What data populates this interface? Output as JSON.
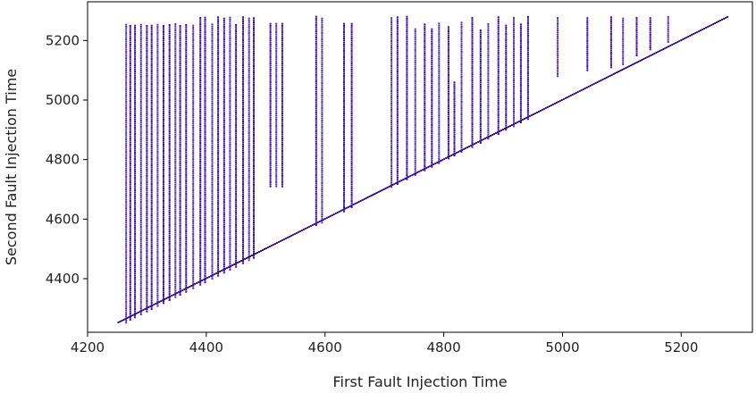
{
  "chart_data": {
    "type": "scatter",
    "title": "",
    "xlabel": "First Fault Injection Time",
    "ylabel": "Second Fault Injection Time",
    "xlim": [
      4200,
      5320
    ],
    "ylim": [
      4220,
      5330
    ],
    "xticks": [
      4200,
      4400,
      4600,
      4800,
      5000,
      5200
    ],
    "yticks": [
      4400,
      4600,
      4800,
      5000,
      5200
    ],
    "grid": false,
    "marker_color": "#3a0ca3",
    "description_of_pattern": "",
    "diagonal": {
      "x": [
        4252,
        5278
      ],
      "y": [
        4252,
        5278
      ]
    },
    "columns": [
      {
        "x": 4265,
        "y": [
          4252,
          5255
        ]
      },
      {
        "x": 4272,
        "y": [
          4262,
          5255
        ]
      },
      {
        "x": 4280,
        "y": [
          4270,
          5255
        ]
      },
      {
        "x": 4290,
        "y": [
          4280,
          5255
        ]
      },
      {
        "x": 4300,
        "y": [
          4290,
          5255
        ]
      },
      {
        "x": 4308,
        "y": [
          4298,
          5255
        ]
      },
      {
        "x": 4318,
        "y": [
          4308,
          5255
        ]
      },
      {
        "x": 4328,
        "y": [
          4318,
          5255
        ]
      },
      {
        "x": 4338,
        "y": [
          4328,
          5255
        ]
      },
      {
        "x": 4348,
        "y": [
          4338,
          5255
        ]
      },
      {
        "x": 4356,
        "y": [
          4346,
          5255
        ]
      },
      {
        "x": 4366,
        "y": [
          4356,
          5255
        ]
      },
      {
        "x": 4378,
        "y": [
          4368,
          5255
        ]
      },
      {
        "x": 4390,
        "y": [
          4380,
          5280
        ]
      },
      {
        "x": 4398,
        "y": [
          4388,
          5280
        ]
      },
      {
        "x": 4410,
        "y": [
          4400,
          5255
        ]
      },
      {
        "x": 4420,
        "y": [
          4410,
          5280
        ]
      },
      {
        "x": 4430,
        "y": [
          4420,
          5280
        ]
      },
      {
        "x": 4440,
        "y": [
          4430,
          5280
        ]
      },
      {
        "x": 4450,
        "y": [
          4440,
          5255
        ]
      },
      {
        "x": 4462,
        "y": [
          4452,
          5280
        ]
      },
      {
        "x": 4472,
        "y": [
          4462,
          5280
        ]
      },
      {
        "x": 4480,
        "y": [
          4470,
          5280
        ]
      },
      {
        "x": 4508,
        "y": [
          4710,
          5260
        ]
      },
      {
        "x": 4518,
        "y": [
          4710,
          5260
        ]
      },
      {
        "x": 4528,
        "y": [
          4710,
          5260
        ]
      },
      {
        "x": 4585,
        "y": [
          4580,
          5280
        ]
      },
      {
        "x": 4595,
        "y": [
          4588,
          5280
        ]
      },
      {
        "x": 4632,
        "y": [
          4626,
          5260
        ]
      },
      {
        "x": 4645,
        "y": [
          4640,
          5260
        ]
      },
      {
        "x": 4712,
        "y": [
          4708,
          5280
        ]
      },
      {
        "x": 4722,
        "y": [
          4718,
          5280
        ]
      },
      {
        "x": 4738,
        "y": [
          4734,
          5280
        ]
      },
      {
        "x": 4752,
        "y": [
          4748,
          5240
        ]
      },
      {
        "x": 4768,
        "y": [
          4764,
          5260
        ]
      },
      {
        "x": 4780,
        "y": [
          4776,
          5240
        ]
      },
      {
        "x": 4792,
        "y": [
          4788,
          5260
        ]
      },
      {
        "x": 4808,
        "y": [
          4804,
          5250
        ]
      },
      {
        "x": 4818,
        "y": [
          4814,
          5060
        ]
      },
      {
        "x": 4830,
        "y": [
          4826,
          5260
        ]
      },
      {
        "x": 4848,
        "y": [
          4842,
          5280
        ]
      },
      {
        "x": 4862,
        "y": [
          4856,
          5240
        ]
      },
      {
        "x": 4875,
        "y": [
          4870,
          5260
        ]
      },
      {
        "x": 4892,
        "y": [
          4886,
          5280
        ]
      },
      {
        "x": 4905,
        "y": [
          4900,
          5250
        ]
      },
      {
        "x": 4918,
        "y": [
          4912,
          5280
        ]
      },
      {
        "x": 4930,
        "y": [
          4925,
          5260
        ]
      },
      {
        "x": 4942,
        "y": [
          4936,
          5280
        ]
      },
      {
        "x": 4992,
        "y": [
          5080,
          5280
        ]
      },
      {
        "x": 5042,
        "y": [
          5100,
          5280
        ]
      },
      {
        "x": 5082,
        "y": [
          5110,
          5280
        ]
      },
      {
        "x": 5102,
        "y": [
          5120,
          5280
        ]
      },
      {
        "x": 5125,
        "y": [
          5150,
          5280
        ]
      },
      {
        "x": 5148,
        "y": [
          5170,
          5280
        ]
      },
      {
        "x": 5178,
        "y": [
          5195,
          5280
        ]
      }
    ]
  }
}
